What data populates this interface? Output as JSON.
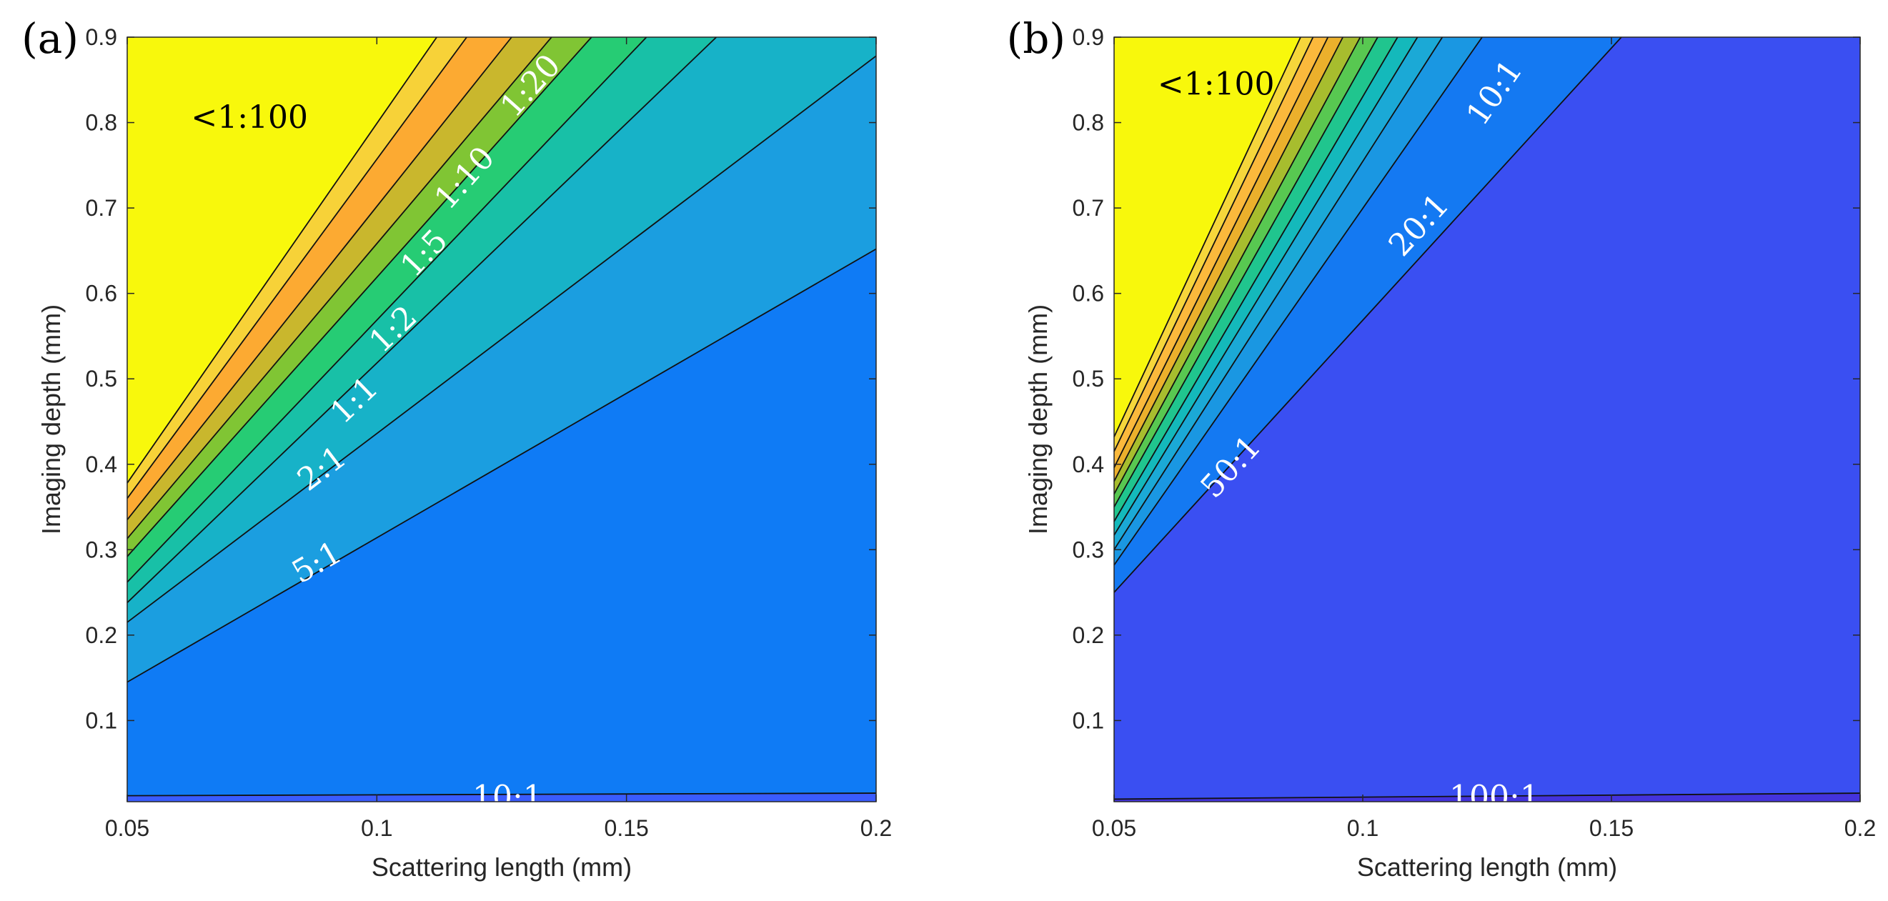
{
  "chart_data": [
    {
      "type": "contour",
      "panel_label": "(a)",
      "xlabel": "Scattering length (mm)",
      "ylabel": "Imaging depth (mm)",
      "xlim": [
        0.05,
        0.2
      ],
      "ylim": [
        0.005,
        0.9
      ],
      "xticks": [
        0.05,
        0.1,
        0.15,
        0.2
      ],
      "xtick_labels": [
        "0.05",
        "0.1",
        "0.15",
        "0.2"
      ],
      "yticks": [
        0.1,
        0.2,
        0.3,
        0.4,
        0.5,
        0.6,
        0.7,
        0.8,
        0.9
      ],
      "ytick_labels": [
        "0.1",
        "0.2",
        "0.3",
        "0.4",
        "0.5",
        "0.6",
        "0.7",
        "0.8",
        "0.9"
      ],
      "contours": [
        {
          "level": "10:1",
          "start": [
            0.05,
            0.012
          ],
          "end": [
            0.2,
            0.015
          ],
          "fill": "#3a5cfe"
        },
        {
          "level": "5:1",
          "start": [
            0.05,
            0.145
          ],
          "end": [
            0.2,
            0.652
          ],
          "fill": "#0f7bf5"
        },
        {
          "level": "2:1",
          "start": [
            0.05,
            0.215
          ],
          "end": [
            0.2,
            0.878
          ],
          "fill": "#1b9ee0"
        },
        {
          "level": "1:1",
          "start": [
            0.05,
            0.238
          ],
          "end": [
            0.168,
            0.9
          ],
          "fill": "#17b2c8"
        },
        {
          "level": "",
          "start": [
            0.05,
            0.262
          ],
          "end": [
            0.154,
            0.9
          ],
          "fill": "#18c0a7"
        },
        {
          "level": "1:2",
          "start": [
            0.05,
            0.292
          ],
          "end": [
            0.143,
            0.9
          ],
          "fill": "#26cc74"
        },
        {
          "level": "1:5",
          "start": [
            0.05,
            0.313
          ],
          "end": [
            0.135,
            0.9
          ],
          "fill": "#80c534"
        },
        {
          "level": "1:10",
          "start": [
            0.05,
            0.335
          ],
          "end": [
            0.127,
            0.9
          ],
          "fill": "#c9b72d"
        },
        {
          "level": "1:20",
          "start": [
            0.05,
            0.36
          ],
          "end": [
            0.118,
            0.9
          ],
          "fill": "#fcaa32"
        },
        {
          "level": "",
          "start": [
            0.05,
            0.378
          ],
          "end": [
            0.112,
            0.9
          ],
          "fill": "#f7d238"
        },
        {
          "level": "<1:100",
          "start": [
            0.05,
            0.9
          ],
          "end": [
            0.05,
            0.9
          ],
          "fill": "#f8f80c"
        }
      ],
      "region_labels": [
        {
          "text": "<1:100",
          "x": 0.0745,
          "y": 0.806,
          "color": "#000000"
        },
        {
          "text": "10:1",
          "x": 0.1262,
          "y": 0.01,
          "color": "#ffffff"
        },
        {
          "text": "5:1",
          "x": 0.088,
          "y": 0.285,
          "color": "#ffffff"
        },
        {
          "text": "2:1",
          "x": 0.089,
          "y": 0.395,
          "color": "#ffffff"
        },
        {
          "text": "1:1",
          "x": 0.0955,
          "y": 0.475,
          "color": "#ffffff"
        },
        {
          "text": "1:2",
          "x": 0.1033,
          "y": 0.558,
          "color": "#ffffff"
        },
        {
          "text": "1:5",
          "x": 0.1095,
          "y": 0.647,
          "color": "#ffffff"
        },
        {
          "text": "1:10",
          "x": 0.1176,
          "y": 0.735,
          "color": "#ffffff"
        },
        {
          "text": "1:20",
          "x": 0.1308,
          "y": 0.843,
          "color": "#ffffff"
        }
      ]
    },
    {
      "type": "contour",
      "panel_label": "(b)",
      "xlabel": "Scattering length (mm)",
      "ylabel": "Imaging depth (mm)",
      "xlim": [
        0.05,
        0.2
      ],
      "ylim": [
        0.005,
        0.9
      ],
      "xticks": [
        0.05,
        0.1,
        0.15,
        0.2
      ],
      "xtick_labels": [
        "0.05",
        "0.1",
        "0.15",
        "0.2"
      ],
      "yticks": [
        0.1,
        0.2,
        0.3,
        0.4,
        0.5,
        0.6,
        0.7,
        0.8,
        0.9
      ],
      "ytick_labels": [
        "0.1",
        "0.2",
        "0.3",
        "0.4",
        "0.5",
        "0.6",
        "0.7",
        "0.8",
        "0.9"
      ],
      "contours": [
        {
          "level": "100:1",
          "start": [
            0.05,
            0.008
          ],
          "end": [
            0.2,
            0.015
          ],
          "fill": "#4433dd"
        },
        {
          "level": "50:1",
          "start": [
            0.05,
            0.25
          ],
          "end": [
            0.152,
            0.9
          ],
          "fill": "#3a4ff2"
        },
        {
          "level": "20:1",
          "start": [
            0.05,
            0.282
          ],
          "end": [
            0.124,
            0.9
          ],
          "fill": "#1479f2"
        },
        {
          "level": "10:1",
          "start": [
            0.05,
            0.3
          ],
          "end": [
            0.116,
            0.9
          ],
          "fill": "#1a97e2"
        },
        {
          "level": "",
          "start": [
            0.05,
            0.317
          ],
          "end": [
            0.111,
            0.9
          ],
          "fill": "#1ba9d6"
        },
        {
          "level": "",
          "start": [
            0.05,
            0.333
          ],
          "end": [
            0.107,
            0.9
          ],
          "fill": "#14b9bb"
        },
        {
          "level": "",
          "start": [
            0.05,
            0.35
          ],
          "end": [
            0.103,
            0.9
          ],
          "fill": "#20c58e"
        },
        {
          "level": "",
          "start": [
            0.05,
            0.365
          ],
          "end": [
            0.0995,
            0.9
          ],
          "fill": "#58c851"
        },
        {
          "level": "",
          "start": [
            0.05,
            0.38
          ],
          "end": [
            0.096,
            0.9
          ],
          "fill": "#a7bd2e"
        },
        {
          "level": "",
          "start": [
            0.05,
            0.396
          ],
          "end": [
            0.093,
            0.9
          ],
          "fill": "#ebb02c"
        },
        {
          "level": "",
          "start": [
            0.05,
            0.415
          ],
          "end": [
            0.09,
            0.9
          ],
          "fill": "#fbb93c"
        },
        {
          "level": "",
          "start": [
            0.05,
            0.432
          ],
          "end": [
            0.0875,
            0.9
          ],
          "fill": "#f6d63b"
        },
        {
          "level": "<1:100",
          "start": [
            0.05,
            0.9
          ],
          "end": [
            0.05,
            0.9
          ],
          "fill": "#f8f80c"
        }
      ],
      "region_labels": [
        {
          "text": "<1:100",
          "x": 0.0705,
          "y": 0.845,
          "color": "#000000"
        },
        {
          "text": "100:1",
          "x": 0.1265,
          "y": 0.01,
          "color": "#ffffff"
        },
        {
          "text": "50:1",
          "x": 0.0735,
          "y": 0.397,
          "color": "#ffffff"
        },
        {
          "text": "20:1",
          "x": 0.1113,
          "y": 0.68,
          "color": "#ffffff"
        },
        {
          "text": "10:1",
          "x": 0.1265,
          "y": 0.835,
          "color": "#ffffff"
        }
      ]
    }
  ]
}
